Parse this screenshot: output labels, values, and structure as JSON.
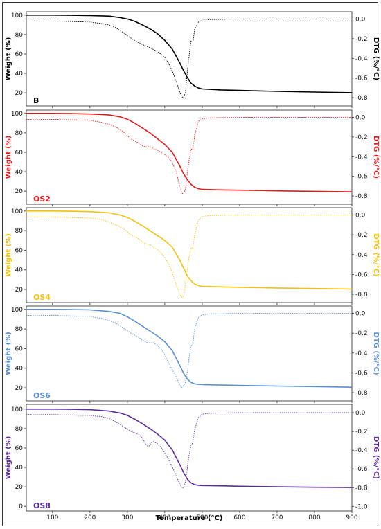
{
  "chart_data": {
    "type": "line",
    "x_axis": {
      "label": "Temperature (°C)",
      "range": [
        30,
        900
      ],
      "ticks": [
        100,
        200,
        300,
        400,
        500,
        600,
        700,
        800,
        900
      ]
    },
    "left_axis": {
      "label": "Weight (%)",
      "ticks_top_panels": [
        20,
        40,
        60,
        80,
        100
      ],
      "ticks_bottom_panel": [
        0,
        20,
        40,
        60,
        80,
        100
      ],
      "range": [
        10,
        100
      ]
    },
    "right_axis": {
      "label": "DTG (%/°C)",
      "ticks_top_panels": [
        0.0,
        -0.2,
        -0.4,
        -0.6,
        -0.8
      ],
      "ticks_bottom_panel": [
        0.0,
        -0.2,
        -0.4,
        -0.6,
        -0.8,
        -1.0
      ],
      "range": [
        -0.85,
        0.05
      ]
    },
    "panels": [
      {
        "label": "B",
        "color": "#000000",
        "tg": {
          "x": [
            30,
            100,
            150,
            200,
            250,
            280,
            300,
            320,
            340,
            360,
            380,
            400,
            420,
            440,
            450,
            460,
            470,
            480,
            490,
            500,
            550,
            600,
            700,
            800,
            900
          ],
          "y": [
            100,
            100,
            99.8,
            99.5,
            99,
            97.5,
            96,
            93.5,
            90,
            86,
            81,
            74,
            65,
            51,
            43,
            36,
            30,
            27,
            25,
            24,
            23,
            22.5,
            21.5,
            20.8,
            20.2
          ]
        },
        "dtg": {
          "x": [
            30,
            100,
            150,
            200,
            230,
            250,
            270,
            290,
            300,
            320,
            340,
            360,
            380,
            400,
            410,
            420,
            430,
            440,
            445,
            450,
            455,
            460,
            465,
            470,
            475,
            480,
            490,
            500,
            520,
            600,
            700,
            800,
            900
          ],
          "y": [
            -0.02,
            -0.02,
            -0.025,
            -0.03,
            -0.045,
            -0.06,
            -0.09,
            -0.14,
            -0.17,
            -0.22,
            -0.26,
            -0.29,
            -0.33,
            -0.39,
            -0.45,
            -0.53,
            -0.63,
            -0.74,
            -0.79,
            -0.8,
            -0.75,
            -0.55,
            -0.38,
            -0.22,
            -0.24,
            -0.1,
            -0.03,
            -0.01,
            -0.005,
            0.0,
            0.0,
            0.0,
            0.0
          ]
        }
      },
      {
        "label": "OS2",
        "color": "#e8191c",
        "tg": {
          "x": [
            30,
            100,
            150,
            200,
            250,
            280,
            300,
            320,
            340,
            360,
            380,
            400,
            420,
            440,
            450,
            460,
            470,
            480,
            490,
            500,
            550,
            600,
            700,
            800,
            900
          ],
          "y": [
            100,
            100,
            99.8,
            99.4,
            98.5,
            96.5,
            94,
            90,
            85,
            80,
            74,
            68,
            60,
            46,
            38,
            32,
            27,
            24,
            22.5,
            21.8,
            21.3,
            21,
            20.3,
            19.8,
            19.4
          ]
        },
        "dtg": {
          "x": [
            30,
            100,
            150,
            200,
            230,
            250,
            270,
            290,
            310,
            330,
            340,
            350,
            360,
            370,
            380,
            390,
            400,
            410,
            420,
            430,
            440,
            445,
            450,
            455,
            460,
            465,
            470,
            475,
            480,
            490,
            500,
            520,
            600,
            700,
            800,
            900
          ],
          "y": [
            -0.02,
            -0.02,
            -0.025,
            -0.03,
            -0.05,
            -0.07,
            -0.1,
            -0.15,
            -0.22,
            -0.26,
            -0.29,
            -0.3,
            -0.3,
            -0.32,
            -0.33,
            -0.36,
            -0.38,
            -0.41,
            -0.46,
            -0.55,
            -0.7,
            -0.77,
            -0.78,
            -0.74,
            -0.58,
            -0.43,
            -0.32,
            -0.33,
            -0.18,
            -0.04,
            -0.015,
            -0.005,
            0.0,
            0.0,
            0.0,
            0.0
          ]
        }
      },
      {
        "label": "OS4",
        "color": "#f3c10a",
        "tg": {
          "x": [
            30,
            100,
            150,
            200,
            250,
            280,
            300,
            320,
            340,
            360,
            380,
            400,
            420,
            440,
            450,
            460,
            470,
            480,
            490,
            500,
            550,
            600,
            700,
            800,
            900
          ],
          "y": [
            100,
            100,
            99.8,
            99.4,
            98.2,
            96,
            93.5,
            89.5,
            85,
            80,
            75,
            70,
            63,
            50,
            42,
            34,
            29,
            25.5,
            24,
            23.2,
            22.6,
            22.2,
            21.5,
            20.9,
            20.4
          ]
        },
        "dtg": {
          "x": [
            30,
            100,
            150,
            200,
            230,
            250,
            270,
            290,
            310,
            330,
            340,
            350,
            360,
            365,
            370,
            380,
            390,
            400,
            410,
            420,
            430,
            440,
            445,
            450,
            455,
            460,
            465,
            470,
            475,
            480,
            490,
            500,
            520,
            600,
            700,
            800,
            900
          ],
          "y": [
            -0.02,
            -0.02,
            -0.025,
            -0.03,
            -0.045,
            -0.07,
            -0.1,
            -0.14,
            -0.2,
            -0.24,
            -0.27,
            -0.29,
            -0.3,
            -0.31,
            -0.33,
            -0.35,
            -0.38,
            -0.43,
            -0.49,
            -0.58,
            -0.7,
            -0.8,
            -0.83,
            -0.82,
            -0.7,
            -0.55,
            -0.42,
            -0.33,
            -0.34,
            -0.2,
            -0.05,
            -0.015,
            -0.005,
            0.0,
            0.0,
            0.0,
            0.0
          ]
        }
      },
      {
        "label": "OS6",
        "color": "#5b8fd0",
        "tg": {
          "x": [
            30,
            100,
            150,
            200,
            250,
            280,
            300,
            320,
            340,
            360,
            380,
            400,
            420,
            440,
            450,
            460,
            470,
            480,
            490,
            500,
            550,
            600,
            700,
            800,
            900
          ],
          "y": [
            100,
            100,
            99.8,
            99.5,
            98,
            96,
            92.5,
            88,
            83,
            78,
            73,
            67,
            58,
            43,
            35,
            29,
            25.5,
            24,
            23.5,
            23.2,
            22.8,
            22.4,
            21.8,
            21.2,
            20.6
          ]
        },
        "dtg": {
          "x": [
            30,
            100,
            150,
            200,
            230,
            250,
            270,
            290,
            310,
            330,
            340,
            350,
            360,
            370,
            380,
            390,
            400,
            410,
            420,
            430,
            440,
            445,
            450,
            455,
            460,
            465,
            470,
            475,
            480,
            490,
            500,
            520,
            600,
            700,
            800,
            900
          ],
          "y": [
            -0.02,
            -0.02,
            -0.025,
            -0.03,
            -0.05,
            -0.07,
            -0.1,
            -0.15,
            -0.2,
            -0.24,
            -0.27,
            -0.29,
            -0.3,
            -0.3,
            -0.32,
            -0.36,
            -0.42,
            -0.5,
            -0.57,
            -0.64,
            -0.72,
            -0.75,
            -0.73,
            -0.7,
            -0.6,
            -0.45,
            -0.33,
            -0.31,
            -0.15,
            -0.04,
            -0.015,
            -0.005,
            0.0,
            0.0,
            0.0,
            0.0
          ]
        }
      },
      {
        "label": "OS8",
        "color": "#5b2d9a",
        "tg": {
          "x": [
            30,
            100,
            150,
            200,
            250,
            280,
            300,
            320,
            340,
            360,
            380,
            400,
            420,
            440,
            450,
            460,
            470,
            480,
            490,
            500,
            550,
            600,
            700,
            800,
            900
          ],
          "y": [
            100,
            100,
            99.8,
            99.4,
            98,
            96,
            93.5,
            89.5,
            85,
            80,
            74.5,
            68,
            58,
            43,
            35,
            28,
            24,
            22.2,
            21.6,
            21.3,
            21,
            20.6,
            20,
            19.6,
            19.3
          ]
        },
        "dtg": {
          "x": [
            30,
            100,
            150,
            200,
            230,
            250,
            270,
            290,
            310,
            330,
            340,
            350,
            355,
            360,
            365,
            370,
            380,
            390,
            400,
            410,
            420,
            430,
            440,
            445,
            450,
            455,
            460,
            465,
            470,
            475,
            480,
            490,
            500,
            520,
            600,
            700,
            800,
            900
          ],
          "y": [
            -0.02,
            -0.02,
            -0.025,
            -0.03,
            -0.04,
            -0.06,
            -0.1,
            -0.15,
            -0.2,
            -0.23,
            -0.27,
            -0.34,
            -0.36,
            -0.35,
            -0.32,
            -0.31,
            -0.33,
            -0.37,
            -0.43,
            -0.5,
            -0.58,
            -0.67,
            -0.76,
            -0.8,
            -0.8,
            -0.75,
            -0.6,
            -0.45,
            -0.35,
            -0.32,
            -0.18,
            -0.05,
            -0.015,
            -0.005,
            0.0,
            0.0,
            0.0,
            0.0
          ]
        }
      }
    ]
  }
}
